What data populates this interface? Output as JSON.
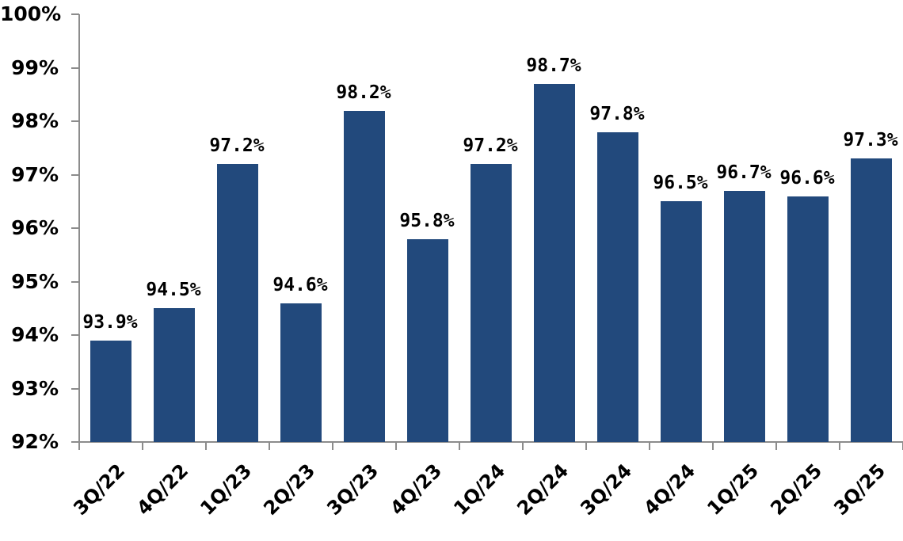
{
  "colors": {
    "bar": "#22497c",
    "axis": "#8c8c8c"
  },
  "chart_data": {
    "type": "bar",
    "title": "",
    "xlabel": "",
    "ylabel": "",
    "ylim": [
      92,
      100
    ],
    "yticks": [
      "92%",
      "93%",
      "94%",
      "95%",
      "96%",
      "97%",
      "98%",
      "99%",
      "100%"
    ],
    "categories": [
      "3Q/22",
      "4Q/22",
      "1Q/23",
      "2Q/23",
      "3Q/23",
      "4Q/23",
      "1Q/24",
      "2Q/24",
      "3Q/24",
      "4Q/24",
      "1Q/25",
      "2Q/25",
      "3Q/25"
    ],
    "values": [
      93.9,
      94.5,
      97.2,
      94.6,
      98.2,
      95.8,
      97.2,
      98.7,
      97.8,
      96.5,
      96.7,
      96.6,
      97.3
    ],
    "labels": [
      "93.9%",
      "94.5%",
      "97.2%",
      "94.6%",
      "98.2%",
      "95.8%",
      "97.2%",
      "98.7%",
      "97.8%",
      "96.5%",
      "96.7%",
      "96.6%",
      "97.3%"
    ],
    "grid": false,
    "legend": null
  }
}
